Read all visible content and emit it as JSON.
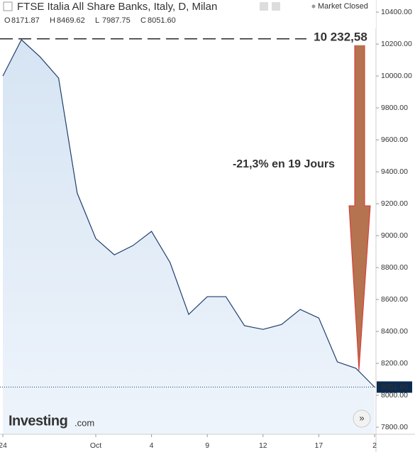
{
  "chart_data": {
    "type": "area",
    "title": "FTSE Italia All Share Banks, Italy, D, Milan",
    "status": "Market Closed",
    "ohlc": [
      {
        "label": "O",
        "value": "8171.87"
      },
      {
        "label": "H",
        "value": "8469.62"
      },
      {
        "label": "L",
        "value": "7987.75"
      },
      {
        "label": "C",
        "value": "8051.60"
      }
    ],
    "categories": [
      "24",
      null,
      null,
      null,
      null,
      "Oct",
      null,
      null,
      "4",
      null,
      null,
      "9",
      null,
      null,
      "12",
      null,
      null,
      "17",
      null,
      null,
      "2"
    ],
    "series": [
      {
        "color": "#1f3f6e",
        "values": [
          10000,
          10227,
          10120,
          9987,
          9267,
          8982,
          8880,
          8938,
          9027,
          8831,
          8507,
          8618,
          8618,
          8436,
          8413,
          8444,
          8538,
          8484,
          8209,
          8169,
          8051.6
        ]
      }
    ],
    "ylim": [
      7756,
      10476
    ],
    "yticks": [
      {
        "value": 7800,
        "label": "7800.00"
      },
      {
        "value": 8000,
        "label": "8000.00"
      },
      {
        "value": 8200,
        "label": "8200.00"
      },
      {
        "value": 8400,
        "label": "8400.00"
      },
      {
        "value": 8600,
        "label": "8600.00"
      },
      {
        "value": 8800,
        "label": "8800.00"
      },
      {
        "value": 9000,
        "label": "9000.00"
      },
      {
        "value": 9200,
        "label": "9200.00"
      },
      {
        "value": 9400,
        "label": "9400.00"
      },
      {
        "value": 9600,
        "label": "9600.00"
      },
      {
        "value": 9800,
        "label": "9800.00"
      },
      {
        "value": 10000,
        "label": "10000.00"
      },
      {
        "value": 10200,
        "label": "10200.00"
      },
      {
        "value": 10400,
        "label": "10400.00"
      }
    ],
    "last_price": {
      "value": 8051.6,
      "label": "8051.60"
    },
    "peak": {
      "value": 10232.58,
      "label": "10 232,58"
    },
    "annotation": "-21,3% en 19 Jours",
    "logo": {
      "name": "Investing",
      "suffix": ".com"
    }
  }
}
